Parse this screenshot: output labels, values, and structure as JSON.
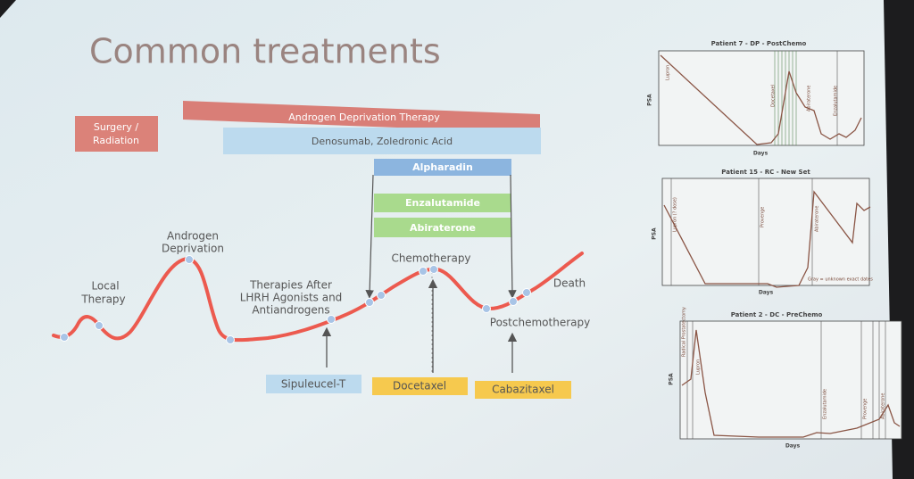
{
  "slide": {
    "title": "Common treatments",
    "therapy_bars": [
      {
        "lines": [
          "Surgery /",
          "Radiation"
        ]
      },
      {
        "lines": [
          "Androgen Deprivation Therapy"
        ]
      },
      {
        "lines": [
          "Denosumab, Zoledronic Acid"
        ]
      },
      {
        "lines": [
          "Alpharadin"
        ]
      },
      {
        "lines": [
          "Enzalutamide"
        ]
      },
      {
        "lines": [
          "Abiraterone"
        ]
      }
    ],
    "curve_labels": [
      {
        "lines": [
          "Local",
          "Therapy"
        ]
      },
      {
        "lines": [
          "Androgen",
          "Deprivation"
        ]
      },
      {
        "lines": [
          "Therapies After",
          "LHRH Agonists and",
          "Antiandrogens"
        ]
      },
      {
        "lines": [
          "Chemotherapy"
        ]
      },
      {
        "lines": [
          "Death"
        ]
      },
      {
        "lines": [
          "Postchemotherapy"
        ]
      }
    ],
    "drug_boxes": [
      "Sipuleucel-T",
      "Docetaxel",
      "Cabazitaxel"
    ],
    "patient_panels": [
      {
        "title": "Patient 7 - DP - PostChemo",
        "y_label": "PSA",
        "x_label": "Days",
        "annotations": [
          "Lupron",
          "Docetaxel",
          "Abiraterone",
          "Enzalutamide"
        ]
      },
      {
        "title": "Patient 15 - RC - New Set",
        "y_label": "PSA",
        "x_label": "Days",
        "annotations": [
          "Lupron (? dose)",
          "Provenge",
          "Abiraterone",
          "Gray = unknown exact dates"
        ]
      },
      {
        "title": "Patient 2 - DC - PreChemo",
        "y_label": "PSA",
        "x_label": "Days",
        "annotations": [
          "Radical Prostatectomy",
          "Lupron",
          "Enzalutamide",
          "Provenge",
          "Abiraterone"
        ]
      }
    ]
  }
}
